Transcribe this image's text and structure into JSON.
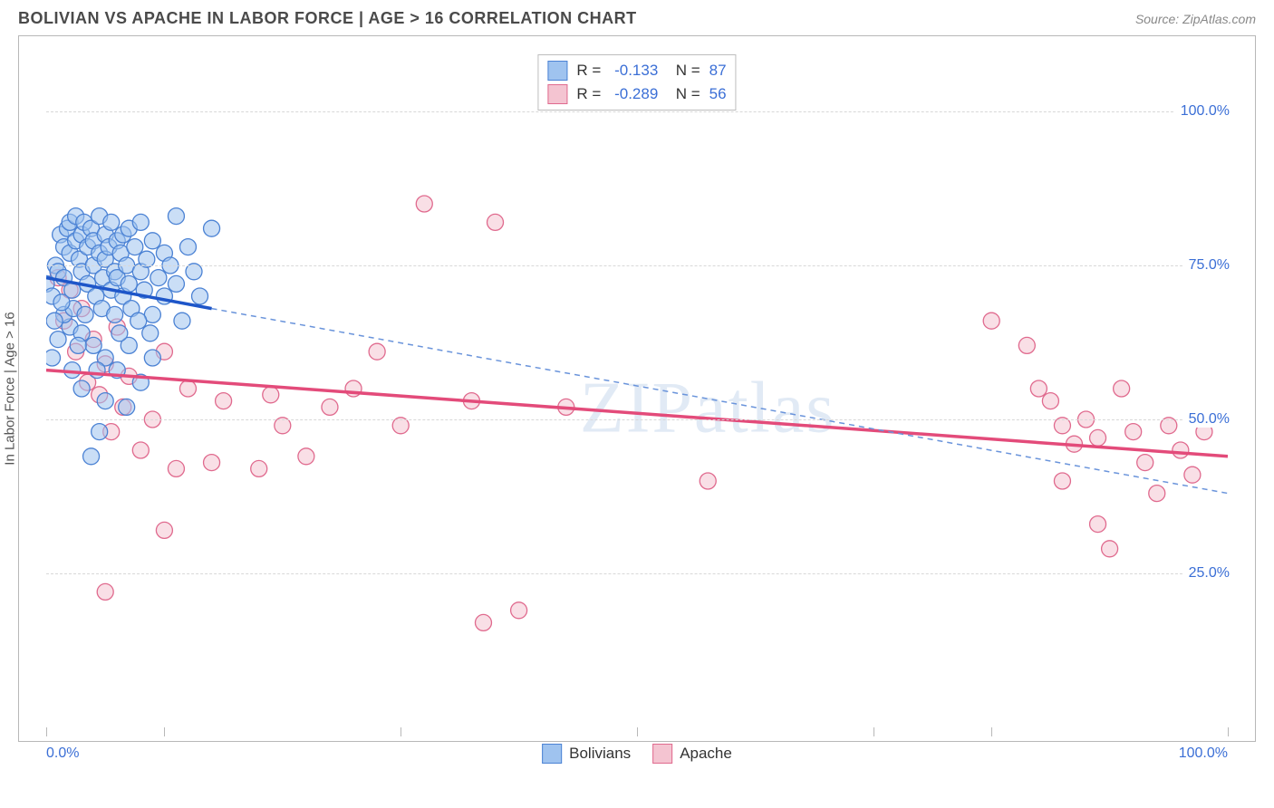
{
  "header": {
    "title": "BOLIVIAN VS APACHE IN LABOR FORCE | AGE > 16 CORRELATION CHART",
    "source": "Source: ZipAtlas.com"
  },
  "chart": {
    "type": "scatter",
    "y_axis_title": "In Labor Force | Age > 16",
    "watermark": "ZIPatlas",
    "background_color": "#ffffff",
    "border_color": "#b8b8b8",
    "grid_color": "#d8d8d8",
    "xlim": [
      0,
      100
    ],
    "ylim": [
      0,
      110
    ],
    "y_ticks": [
      25,
      50,
      75,
      100
    ],
    "y_tick_labels": [
      "25.0%",
      "50.0%",
      "75.0%",
      "100.0%"
    ],
    "x_ticks": [
      0,
      10,
      30,
      50,
      70,
      80,
      100
    ],
    "x_axis_labels": [
      {
        "pos": 0,
        "text": "0.0%"
      },
      {
        "pos": 100,
        "text": "100.0%"
      }
    ],
    "marker_radius": 9,
    "marker_stroke_width": 1.3,
    "series": {
      "bolivians": {
        "label": "Bolivians",
        "fill_color": "#9fc3ef",
        "stroke_color": "#4b82d4",
        "fill_opacity": 0.55,
        "R": "-0.133",
        "N": "87",
        "trend_solid": {
          "x1": 0,
          "y1": 73,
          "x2": 14,
          "y2": 68,
          "color": "#1e56c9",
          "width": 3.5
        },
        "trend_dashed": {
          "x1": 14,
          "y1": 68,
          "x2": 100,
          "y2": 38,
          "color": "#6a94db",
          "width": 1.5,
          "dash": "6,5"
        },
        "points": [
          [
            0,
            72
          ],
          [
            0.5,
            70
          ],
          [
            0.8,
            75
          ],
          [
            1,
            74
          ],
          [
            1.2,
            80
          ],
          [
            1.5,
            78
          ],
          [
            1.5,
            73
          ],
          [
            1.8,
            81
          ],
          [
            2,
            77
          ],
          [
            2,
            82
          ],
          [
            2.2,
            71
          ],
          [
            2.5,
            79
          ],
          [
            2.5,
            83
          ],
          [
            2.8,
            76
          ],
          [
            3,
            80
          ],
          [
            3,
            74
          ],
          [
            3.2,
            82
          ],
          [
            3.5,
            78
          ],
          [
            3.5,
            72
          ],
          [
            3.8,
            81
          ],
          [
            4,
            75
          ],
          [
            4,
            79
          ],
          [
            4.2,
            70
          ],
          [
            4.5,
            77
          ],
          [
            4.5,
            83
          ],
          [
            4.8,
            73
          ],
          [
            5,
            80
          ],
          [
            5,
            76
          ],
          [
            5.3,
            78
          ],
          [
            5.5,
            71
          ],
          [
            5.5,
            82
          ],
          [
            5.8,
            74
          ],
          [
            6,
            79
          ],
          [
            6,
            73
          ],
          [
            6.3,
            77
          ],
          [
            6.5,
            70
          ],
          [
            6.5,
            80
          ],
          [
            6.8,
            75
          ],
          [
            7,
            72
          ],
          [
            7,
            81
          ],
          [
            7.2,
            68
          ],
          [
            7.5,
            78
          ],
          [
            8,
            74
          ],
          [
            8,
            82
          ],
          [
            8.3,
            71
          ],
          [
            8.5,
            76
          ],
          [
            9,
            79
          ],
          [
            9,
            67
          ],
          [
            9.5,
            73
          ],
          [
            10,
            77
          ],
          [
            10,
            70
          ],
          [
            10.5,
            75
          ],
          [
            11,
            72
          ],
          [
            11,
            83
          ],
          [
            11.5,
            66
          ],
          [
            12,
            78
          ],
          [
            12.5,
            74
          ],
          [
            13,
            70
          ],
          [
            14,
            81
          ],
          [
            2,
            65
          ],
          [
            3,
            64
          ],
          [
            4,
            62
          ],
          [
            5,
            60
          ],
          [
            6,
            58
          ],
          [
            7,
            62
          ],
          [
            8,
            56
          ],
          [
            9,
            60
          ],
          [
            3,
            55
          ],
          [
            5,
            53
          ],
          [
            1.5,
            67
          ],
          [
            2.3,
            68
          ],
          [
            3.3,
            67
          ],
          [
            4.7,
            68
          ],
          [
            6.2,
            64
          ],
          [
            7.8,
            66
          ],
          [
            2.7,
            62
          ],
          [
            4.3,
            58
          ],
          [
            1,
            63
          ],
          [
            0.7,
            66
          ],
          [
            1.3,
            69
          ],
          [
            5.8,
            67
          ],
          [
            8.8,
            64
          ],
          [
            3.8,
            44
          ],
          [
            6.8,
            52
          ],
          [
            4.5,
            48
          ],
          [
            2.2,
            58
          ],
          [
            0.5,
            60
          ]
        ]
      },
      "apache": {
        "label": "Apache",
        "fill_color": "#f4c4d1",
        "stroke_color": "#e06a8e",
        "fill_opacity": 0.55,
        "R": "-0.289",
        "N": "56",
        "trend_solid": {
          "x1": 0,
          "y1": 58,
          "x2": 100,
          "y2": 44,
          "color": "#e34b7a",
          "width": 3.5
        },
        "points": [
          [
            1,
            73
          ],
          [
            1.5,
            66
          ],
          [
            2,
            71
          ],
          [
            2.5,
            61
          ],
          [
            3,
            68
          ],
          [
            3.5,
            56
          ],
          [
            4,
            63
          ],
          [
            4.5,
            54
          ],
          [
            5,
            59
          ],
          [
            5.5,
            48
          ],
          [
            6,
            65
          ],
          [
            6.5,
            52
          ],
          [
            7,
            57
          ],
          [
            8,
            45
          ],
          [
            9,
            50
          ],
          [
            10,
            61
          ],
          [
            11,
            42
          ],
          [
            12,
            55
          ],
          [
            14,
            43
          ],
          [
            15,
            53
          ],
          [
            5,
            22
          ],
          [
            10,
            32
          ],
          [
            18,
            42
          ],
          [
            19,
            54
          ],
          [
            20,
            49
          ],
          [
            22,
            44
          ],
          [
            24,
            52
          ],
          [
            26,
            55
          ],
          [
            28,
            61
          ],
          [
            30,
            49
          ],
          [
            32,
            85
          ],
          [
            38,
            82
          ],
          [
            36,
            53
          ],
          [
            37,
            17
          ],
          [
            40,
            19
          ],
          [
            44,
            52
          ],
          [
            56,
            40
          ],
          [
            80,
            66
          ],
          [
            83,
            62
          ],
          [
            84,
            55
          ],
          [
            85,
            53
          ],
          [
            86,
            49
          ],
          [
            87,
            46
          ],
          [
            88,
            50
          ],
          [
            89,
            47
          ],
          [
            90,
            29
          ],
          [
            91,
            55
          ],
          [
            92,
            48
          ],
          [
            93,
            43
          ],
          [
            94,
            38
          ],
          [
            95,
            49
          ],
          [
            96,
            45
          ],
          [
            97,
            41
          ],
          [
            98,
            48
          ],
          [
            89,
            33
          ],
          [
            86,
            40
          ]
        ]
      }
    },
    "legend_bottom": [
      {
        "label": "Bolivians",
        "fill": "#9fc3ef",
        "stroke": "#4b82d4"
      },
      {
        "label": "Apache",
        "fill": "#f4c4d1",
        "stroke": "#e06a8e"
      }
    ]
  }
}
